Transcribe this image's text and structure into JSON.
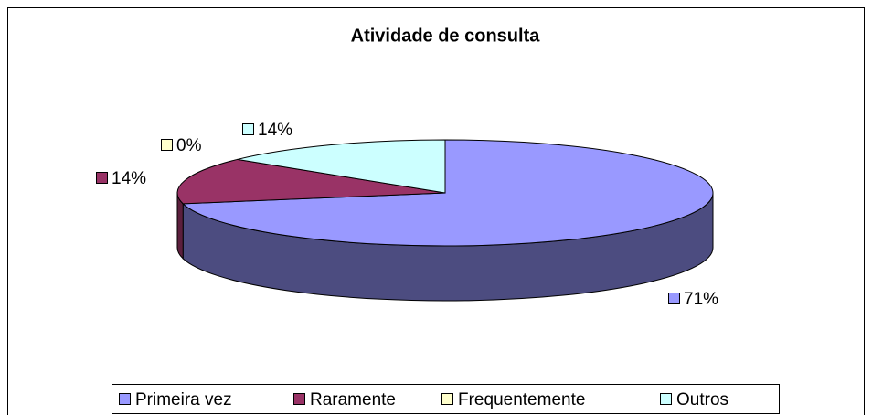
{
  "chart_data": {
    "type": "pie",
    "title": "Atividade de consulta",
    "categories": [
      "Primeira vez",
      "Raramente",
      "Frequentemente",
      "Outros"
    ],
    "values": [
      71,
      14,
      0,
      14
    ],
    "value_labels": [
      "71%",
      "14%",
      "0%",
      "14%"
    ],
    "colors": [
      "#9999ff",
      "#993366",
      "#ffffcc",
      "#ccffff"
    ],
    "side_colors": [
      "#4c4c80",
      "#5c1f3d",
      "#99997a",
      "#7a9999"
    ],
    "legend": "bottom"
  }
}
